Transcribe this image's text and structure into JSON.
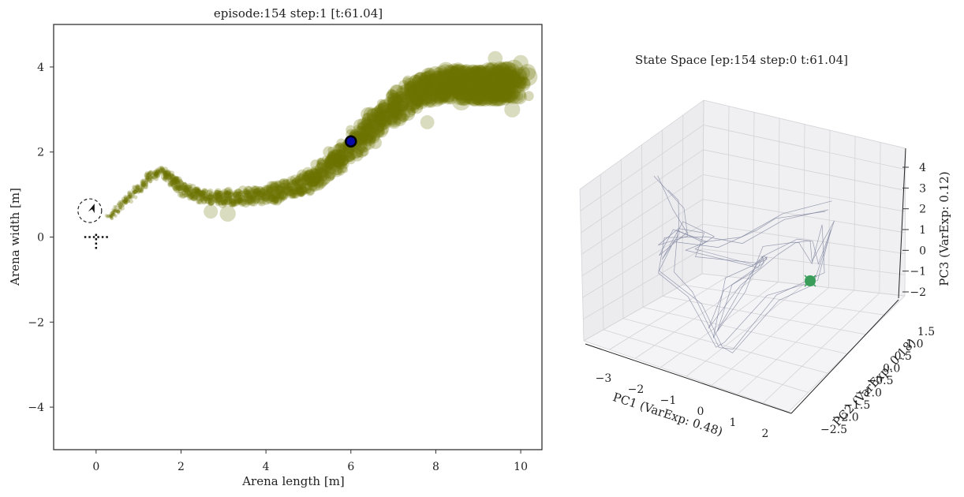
{
  "chart_data": [
    {
      "type": "scatter",
      "title": "episode:154 step:1 [t:61.04]",
      "xlabel": "Arena length [m]",
      "ylabel": "Arena width [m]",
      "xlim": [
        -1,
        10.5
      ],
      "ylim": [
        -5,
        5
      ],
      "xticks": [
        0,
        2,
        4,
        6,
        8,
        10
      ],
      "yticks": [
        -4,
        -2,
        0,
        2,
        4
      ],
      "xtick_labels": [
        "0",
        "2",
        "4",
        "6",
        "8",
        "10"
      ],
      "ytick_labels": [
        "−4",
        "−2",
        "0",
        "2",
        "4"
      ],
      "trail_color": "#6b7300",
      "trail_centerline": [
        [
          0.3,
          0.45
        ],
        [
          0.6,
          0.75
        ],
        [
          0.9,
          1.05
        ],
        [
          1.2,
          1.35
        ],
        [
          1.5,
          1.55
        ],
        [
          1.8,
          1.35
        ],
        [
          2.1,
          1.1
        ],
        [
          2.5,
          0.95
        ],
        [
          3.0,
          0.92
        ],
        [
          3.5,
          0.95
        ],
        [
          4.0,
          1.0
        ],
        [
          4.5,
          1.1
        ],
        [
          5.0,
          1.3
        ],
        [
          5.5,
          1.65
        ],
        [
          6.0,
          2.1
        ],
        [
          6.5,
          2.6
        ],
        [
          7.0,
          3.05
        ],
        [
          7.5,
          3.4
        ],
        [
          8.0,
          3.55
        ],
        [
          8.5,
          3.6
        ],
        [
          9.0,
          3.6
        ],
        [
          9.5,
          3.6
        ],
        [
          9.9,
          3.6
        ]
      ],
      "agent_marker": {
        "x": 0.0,
        "y": 0.62,
        "heading_deg": 45
      },
      "goal_cross": {
        "x": 0.0,
        "y": 0.0
      },
      "current_point": {
        "x": 6.0,
        "y": 2.25,
        "color": "#0a0aa8"
      }
    },
    {
      "type": "line3d",
      "title": "State Space [ep:154 step:0 t:61.04]",
      "xlabel": "PC1 (VarExp: 0.48)",
      "ylabel": "PC2 (VarExp: 0.18)",
      "zlabel": "PC3 (VarExp: 0.12)",
      "xticks": [
        "−3",
        "−2",
        "−1",
        "0",
        "1",
        "2"
      ],
      "yticks": [
        "−2.5",
        "−2.0",
        "−1.5",
        "−1.0",
        "−0.5",
        "0.0",
        "0.5",
        "1.0",
        "1.5"
      ],
      "zticks": [
        "−2",
        "−1",
        "0",
        "1",
        "2",
        "3",
        "4"
      ],
      "marker_color": "#3a9e5a",
      "line_color": "#7a7f99"
    }
  ]
}
